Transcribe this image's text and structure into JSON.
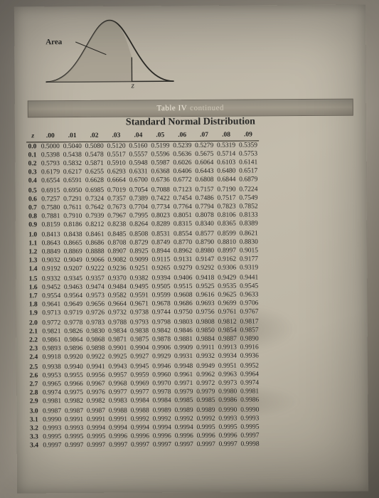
{
  "curve": {
    "area_label": "Area",
    "z_label": "z",
    "shade_color": "#9e9789",
    "stroke_color": "#2b2a26"
  },
  "banner": {
    "main": "Table IV",
    "sub": "continued"
  },
  "title": "Standard Normal Distribution",
  "col_headers": [
    "z",
    ".00",
    ".01",
    ".02",
    ".03",
    ".04",
    ".05",
    ".06",
    ".07",
    ".08",
    ".09"
  ],
  "groups": [
    [
      [
        "0.0",
        "0.5000",
        "0.5040",
        "0.5080",
        "0.5120",
        "0.5160",
        "0.5199",
        "0.5239",
        "0.5279",
        "0.5319",
        "0.5359"
      ],
      [
        "0.1",
        "0.5398",
        "0.5438",
        "0.5478",
        "0.5517",
        "0.5557",
        "0.5596",
        "0.5636",
        "0.5675",
        "0.5714",
        "0.5753"
      ],
      [
        "0.2",
        "0.5793",
        "0.5832",
        "0.5871",
        "0.5910",
        "0.5948",
        "0.5987",
        "0.6026",
        "0.6064",
        "0.6103",
        "0.6141"
      ],
      [
        "0.3",
        "0.6179",
        "0.6217",
        "0.6255",
        "0.6293",
        "0.6331",
        "0.6368",
        "0.6406",
        "0.6443",
        "0.6480",
        "0.6517"
      ],
      [
        "0.4",
        "0.6554",
        "0.6591",
        "0.6628",
        "0.6664",
        "0.6700",
        "0.6736",
        "0.6772",
        "0.6808",
        "0.6844",
        "0.6879"
      ]
    ],
    [
      [
        "0.5",
        "0.6915",
        "0.6950",
        "0.6985",
        "0.7019",
        "0.7054",
        "0.7088",
        "0.7123",
        "0.7157",
        "0.7190",
        "0.7224"
      ],
      [
        "0.6",
        "0.7257",
        "0.7291",
        "0.7324",
        "0.7357",
        "0.7389",
        "0.7422",
        "0.7454",
        "0.7486",
        "0.7517",
        "0.7549"
      ],
      [
        "0.7",
        "0.7580",
        "0.7611",
        "0.7642",
        "0.7673",
        "0.7704",
        "0.7734",
        "0.7764",
        "0.7794",
        "0.7823",
        "0.7852"
      ],
      [
        "0.8",
        "0.7881",
        "0.7910",
        "0.7939",
        "0.7967",
        "0.7995",
        "0.8023",
        "0.8051",
        "0.8078",
        "0.8106",
        "0.8133"
      ],
      [
        "0.9",
        "0.8159",
        "0.8186",
        "0.8212",
        "0.8238",
        "0.8264",
        "0.8289",
        "0.8315",
        "0.8340",
        "0.8365",
        "0.8389"
      ]
    ],
    [
      [
        "1.0",
        "0.8413",
        "0.8438",
        "0.8461",
        "0.8485",
        "0.8508",
        "0.8531",
        "0.8554",
        "0.8577",
        "0.8599",
        "0.8621"
      ],
      [
        "1.1",
        "0.8643",
        "0.8665",
        "0.8686",
        "0.8708",
        "0.8729",
        "0.8749",
        "0.8770",
        "0.8790",
        "0.8810",
        "0.8830"
      ],
      [
        "1.2",
        "0.8849",
        "0.8869",
        "0.8888",
        "0.8907",
        "0.8925",
        "0.8944",
        "0.8962",
        "0.8980",
        "0.8997",
        "0.9015"
      ],
      [
        "1.3",
        "0.9032",
        "0.9049",
        "0.9066",
        "0.9082",
        "0.9099",
        "0.9115",
        "0.9131",
        "0.9147",
        "0.9162",
        "0.9177"
      ],
      [
        "1.4",
        "0.9192",
        "0.9207",
        "0.9222",
        "0.9236",
        "0.9251",
        "0.9265",
        "0.9279",
        "0.9292",
        "0.9306",
        "0.9319"
      ]
    ],
    [
      [
        "1.5",
        "0.9332",
        "0.9345",
        "0.9357",
        "0.9370",
        "0.9382",
        "0.9394",
        "0.9406",
        "0.9418",
        "0.9429",
        "0.9441"
      ],
      [
        "1.6",
        "0.9452",
        "0.9463",
        "0.9474",
        "0.9484",
        "0.9495",
        "0.9505",
        "0.9515",
        "0.9525",
        "0.9535",
        "0.9545"
      ],
      [
        "1.7",
        "0.9554",
        "0.9564",
        "0.9573",
        "0.9582",
        "0.9591",
        "0.9599",
        "0.9608",
        "0.9616",
        "0.9625",
        "0.9633"
      ],
      [
        "1.8",
        "0.9641",
        "0.9649",
        "0.9656",
        "0.9664",
        "0.9671",
        "0.9678",
        "0.9686",
        "0.9693",
        "0.9699",
        "0.9706"
      ],
      [
        "1.9",
        "0.9713",
        "0.9719",
        "0.9726",
        "0.9732",
        "0.9738",
        "0.9744",
        "0.9750",
        "0.9756",
        "0.9761",
        "0.9767"
      ]
    ],
    [
      [
        "2.0",
        "0.9772",
        "0.9778",
        "0.9783",
        "0.9788",
        "0.9793",
        "0.9798",
        "0.9803",
        "0.9808",
        "0.9812",
        "0.9817"
      ],
      [
        "2.1",
        "0.9821",
        "0.9826",
        "0.9830",
        "0.9834",
        "0.9838",
        "0.9842",
        "0.9846",
        "0.9850",
        "0.9854",
        "0.9857"
      ],
      [
        "2.2",
        "0.9861",
        "0.9864",
        "0.9868",
        "0.9871",
        "0.9875",
        "0.9878",
        "0.9881",
        "0.9884",
        "0.9887",
        "0.9890"
      ],
      [
        "2.3",
        "0.9893",
        "0.9896",
        "0.9898",
        "0.9901",
        "0.9904",
        "0.9906",
        "0.9909",
        "0.9911",
        "0.9913",
        "0.9916"
      ],
      [
        "2.4",
        "0.9918",
        "0.9920",
        "0.9922",
        "0.9925",
        "0.9927",
        "0.9929",
        "0.9931",
        "0.9932",
        "0.9934",
        "0.9936"
      ]
    ],
    [
      [
        "2.5",
        "0.9938",
        "0.9940",
        "0.9941",
        "0.9943",
        "0.9945",
        "0.9946",
        "0.9948",
        "0.9949",
        "0.9951",
        "0.9952"
      ],
      [
        "2.6",
        "0.9953",
        "0.9955",
        "0.9956",
        "0.9957",
        "0.9959",
        "0.9960",
        "0.9961",
        "0.9962",
        "0.9963",
        "0.9964"
      ],
      [
        "2.7",
        "0.9965",
        "0.9966",
        "0.9967",
        "0.9968",
        "0.9969",
        "0.9970",
        "0.9971",
        "0.9972",
        "0.9973",
        "0.9974"
      ],
      [
        "2.8",
        "0.9974",
        "0.9975",
        "0.9976",
        "0.9977",
        "0.9977",
        "0.9978",
        "0.9979",
        "0.9979",
        "0.9980",
        "0.9981"
      ],
      [
        "2.9",
        "0.9981",
        "0.9982",
        "0.9982",
        "0.9983",
        "0.9984",
        "0.9984",
        "0.9985",
        "0.9985",
        "0.9986",
        "0.9986"
      ]
    ],
    [
      [
        "3.0",
        "0.9987",
        "0.9987",
        "0.9987",
        "0.9988",
        "0.9988",
        "0.9989",
        "0.9989",
        "0.9989",
        "0.9990",
        "0.9990"
      ],
      [
        "3.1",
        "0.9990",
        "0.9991",
        "0.9991",
        "0.9991",
        "0.9992",
        "0.9992",
        "0.9992",
        "0.9992",
        "0.9993",
        "0.9993"
      ],
      [
        "3.2",
        "0.9993",
        "0.9993",
        "0.9994",
        "0.9994",
        "0.9994",
        "0.9994",
        "0.9994",
        "0.9995",
        "0.9995",
        "0.9995"
      ],
      [
        "3.3",
        "0.9995",
        "0.9995",
        "0.9995",
        "0.9996",
        "0.9996",
        "0.9996",
        "0.9996",
        "0.9996",
        "0.9996",
        "0.9997"
      ],
      [
        "3.4",
        "0.9997",
        "0.9997",
        "0.9997",
        "0.9997",
        "0.9997",
        "0.9997",
        "0.9997",
        "0.9997",
        "0.9997",
        "0.9998"
      ]
    ]
  ]
}
